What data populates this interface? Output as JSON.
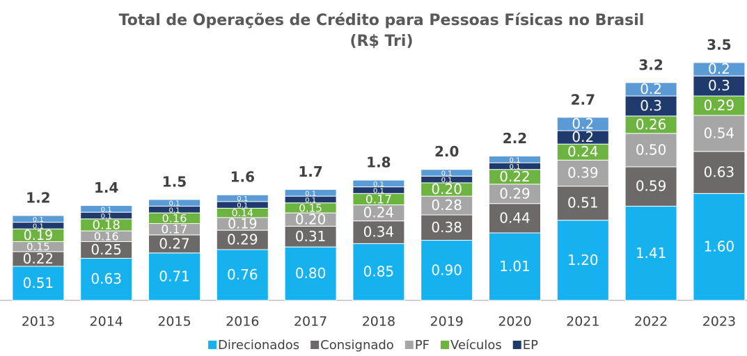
{
  "chart_data": {
    "type": "stacked_bar",
    "title": "Total de Operações de Crédito para Pessoas Físicas no Brasil",
    "subtitle": "(R$ Tri)",
    "categories": [
      "2013",
      "2014",
      "2015",
      "2016",
      "2017",
      "2018",
      "2019",
      "2020",
      "2021",
      "2022",
      "2023"
    ],
    "ylim": [
      0,
      3.6
    ],
    "series": [
      {
        "name": "Direcionados",
        "color": "#16b1ef",
        "values": [
          0.51,
          0.63,
          0.71,
          0.76,
          0.8,
          0.85,
          0.9,
          1.01,
          1.2,
          1.41,
          1.6
        ],
        "value_labels": [
          "0.51",
          "0.63",
          "0.71",
          "0.76",
          "0.80",
          "0.85",
          "0.90",
          "1.01",
          "1.20",
          "1.41",
          "1.60"
        ]
      },
      {
        "name": "Consignado",
        "color": "#6d6968",
        "values": [
          0.22,
          0.25,
          0.27,
          0.29,
          0.31,
          0.34,
          0.38,
          0.44,
          0.51,
          0.59,
          0.63
        ]
      },
      {
        "name": "PF",
        "color": "#a6a6a6",
        "values": [
          0.15,
          0.16,
          0.17,
          0.19,
          0.2,
          0.24,
          0.28,
          0.29,
          0.39,
          0.5,
          0.54
        ],
        "value_labels": [
          "0.15",
          "0.16",
          "0.17",
          "0.19",
          "0.20",
          "0.24",
          "0.28",
          "0.29",
          "0.39",
          "0.50",
          "0.54"
        ]
      },
      {
        "name": "Veículos",
        "color": "#6cb33f",
        "values": [
          0.19,
          0.18,
          0.16,
          0.14,
          0.15,
          0.17,
          0.2,
          0.22,
          0.24,
          0.26,
          0.29
        ],
        "value_labels": [
          "0.19",
          "0.18",
          "0.16",
          "0.14",
          "0.15",
          "0.17",
          "0.20",
          "0.22",
          "0.24",
          "0.26",
          "0.29"
        ]
      },
      {
        "name": "EP",
        "color": "#1f3a6c",
        "values": [
          0.1,
          0.1,
          0.1,
          0.1,
          0.1,
          0.1,
          0.1,
          0.1,
          0.2,
          0.3,
          0.3
        ]
      },
      {
        "color": "#5b9bd5",
        "values": [
          0.1,
          0.1,
          0.1,
          0.1,
          0.1,
          0.1,
          0.1,
          0.1,
          0.2,
          0.2,
          0.2
        ]
      }
    ],
    "totals": [
      1.2,
      1.4,
      1.5,
      1.6,
      1.7,
      1.8,
      2.0,
      2.2,
      2.7,
      3.2,
      3.5
    ],
    "totals_labels": [
      "1.2",
      "1.4",
      "1.5",
      "1.6",
      "1.7",
      "1.8",
      "2.0",
      "2.2",
      "2.7",
      "3.2",
      "3.5"
    ]
  }
}
